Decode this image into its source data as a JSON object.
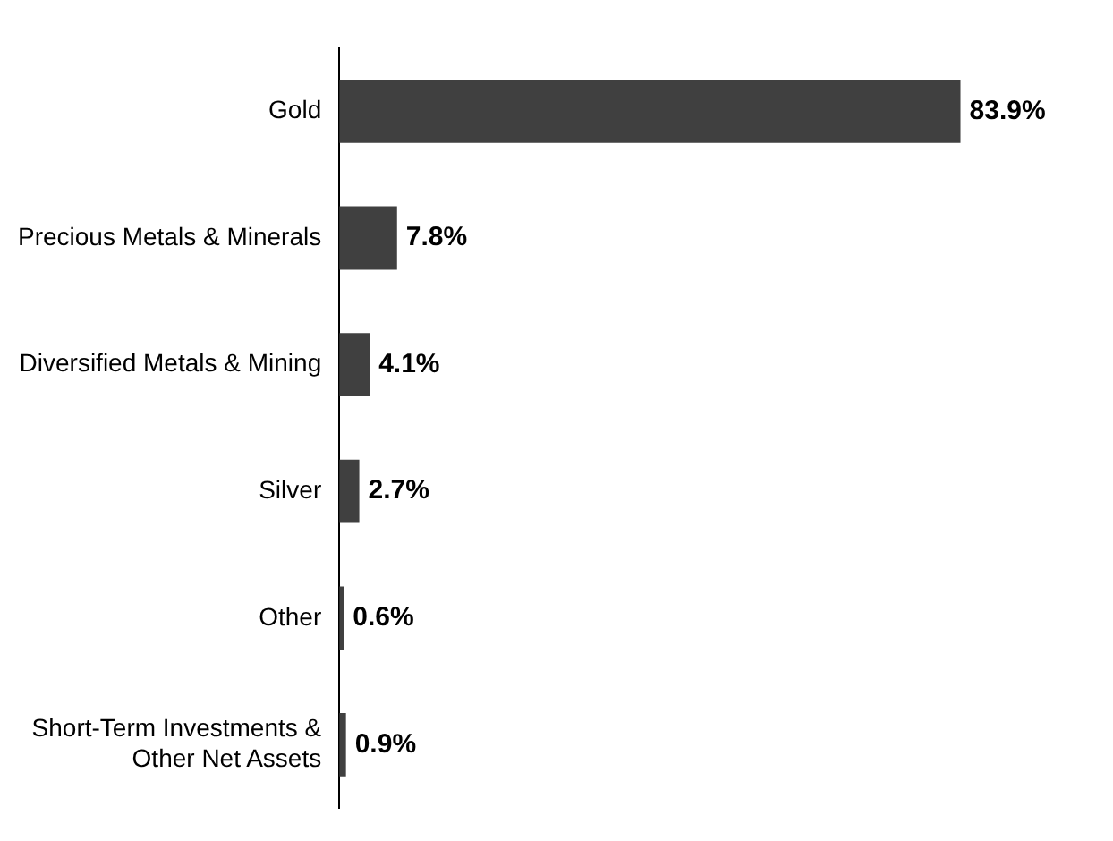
{
  "chart_data": {
    "type": "bar",
    "orientation": "horizontal",
    "categories": [
      "Gold",
      "Precious Metals & Minerals",
      "Diversified Metals & Mining",
      "Silver",
      "Other",
      "Short-Term Investments & Other Net Assets"
    ],
    "values": [
      83.9,
      7.8,
      4.1,
      2.7,
      0.6,
      0.9
    ],
    "value_labels": [
      "83.9%",
      "7.8%",
      "4.1%",
      "2.7%",
      "0.6%",
      "0.9%"
    ],
    "color": "#404040"
  }
}
